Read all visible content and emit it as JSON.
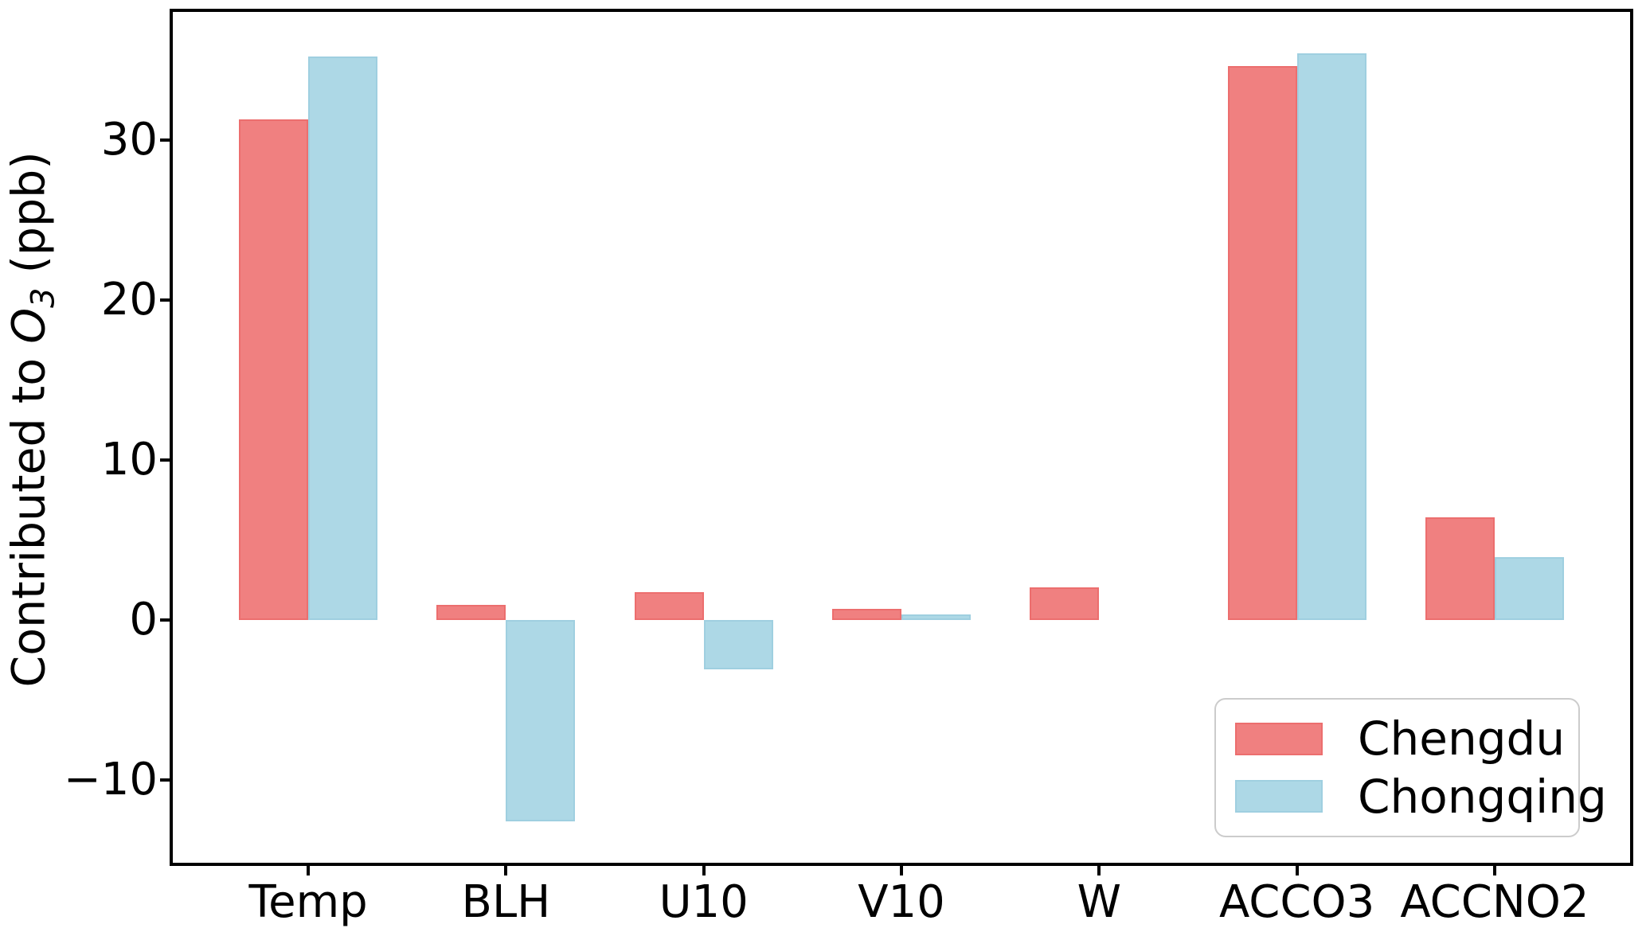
{
  "figure": {
    "background": "#ffffff",
    "axes_edge_color": "#000000"
  },
  "labels": {
    "ylabel_prefix": "Contributed to ",
    "ylabel_symbol": "O",
    "ylabel_subscript": "3",
    "ylabel_suffix": " (ppb)"
  },
  "chart_data": {
    "type": "bar",
    "categories": [
      "Temp",
      "BLH",
      "U10",
      "V10",
      "W",
      "ACCO3",
      "ACCNO2"
    ],
    "series": [
      {
        "name": "Chengdu",
        "color": "#F08080",
        "edge_color": "#EC6E6E",
        "values": [
          31.3,
          0.9,
          1.7,
          0.7,
          2.0,
          34.6,
          6.4
        ]
      },
      {
        "name": "Chongqing",
        "color": "#ADD8E6",
        "edge_color": "#9FCFE0",
        "values": [
          35.2,
          -12.6,
          -3.1,
          0.35,
          0.0,
          35.4,
          3.9
        ]
      }
    ],
    "title": "",
    "xlabel": "",
    "ylabel": "Contributed to O3 (ppb)",
    "ylim": [
      -15.2,
      38.0
    ],
    "yticks": [
      30,
      20,
      10,
      0,
      -10
    ],
    "grid": false,
    "legend_position": "lower right",
    "bar_width_fraction": 0.35,
    "x_margin_fraction": 0.05
  }
}
